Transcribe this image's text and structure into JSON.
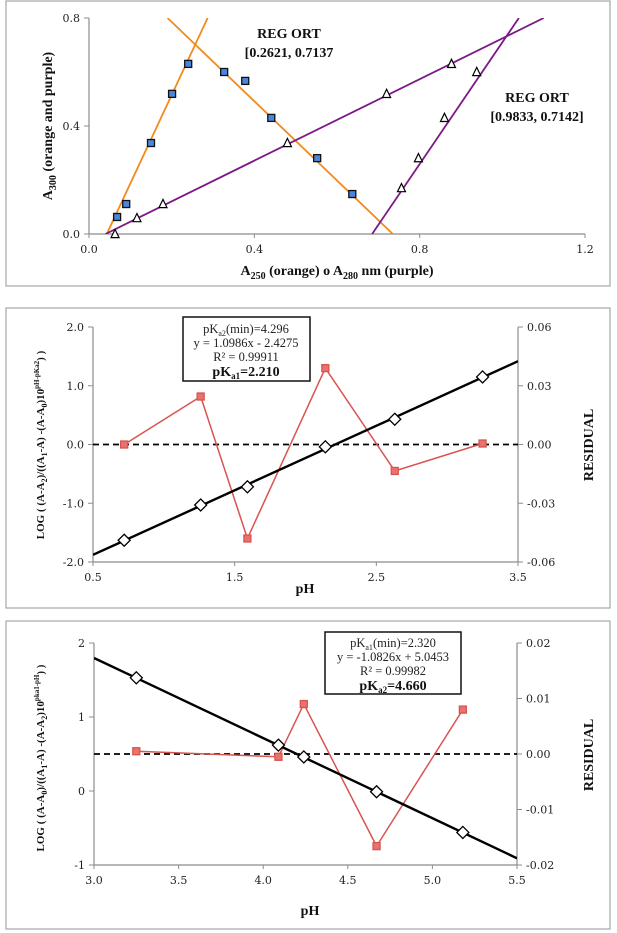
{
  "chart_data": [
    {
      "type": "scatter",
      "title": "",
      "xlabel": "A250 (orange) o A280 nm (purple)",
      "xlabel_parts": {
        "pre": "A",
        "sub": "250",
        "mid": " (orange) o A",
        "sub2": "280",
        "post": " nm (purple)"
      },
      "ylabel": "A300 (orange and purple)",
      "ylabel_parts": {
        "pre": "A",
        "sub": "300",
        "post": " (orange and purple)"
      },
      "xlim": [
        0.0,
        1.2
      ],
      "ylim": [
        0.0,
        0.8
      ],
      "xticks": [
        "0.0",
        "0.4",
        "0.8",
        "1.2"
      ],
      "yticks": [
        "0.0",
        "0.4",
        "0.8"
      ],
      "xtick_values": [
        0.0,
        0.4,
        0.8,
        1.2
      ],
      "ytick_values": [
        0.0,
        0.4,
        0.8
      ],
      "grid": false,
      "series": [
        {
          "name": "orange (A250)",
          "marker": "square",
          "marker_color": "#4a86e0",
          "line_color": "#f28a1c",
          "x": [
            0.068,
            0.09,
            0.15,
            0.201,
            0.24,
            0.327,
            0.378,
            0.441,
            0.552,
            0.637
          ],
          "y": [
            0.063,
            0.111,
            0.337,
            0.519,
            0.63,
            0.6,
            0.567,
            0.43,
            0.281,
            0.148
          ]
        },
        {
          "name": "purple (A280)",
          "marker": "triangle",
          "marker_color": "#ffffff",
          "line_color": "#7b1a85",
          "x": [
            0.063,
            0.116,
            0.179,
            0.48,
            0.72,
            0.877,
            0.938,
            0.86,
            0.797,
            0.756
          ],
          "y": [
            0.0,
            0.059,
            0.111,
            0.337,
            0.519,
            0.63,
            0.6,
            0.43,
            0.281,
            0.17
          ]
        }
      ],
      "fit_lines": [
        {
          "color": "#f28a1c",
          "x": [
            0.043,
            0.287
          ],
          "y": [
            0.0,
            0.8
          ]
        },
        {
          "color": "#f28a1c",
          "x": [
            0.19,
            0.735
          ],
          "y": [
            0.8,
            0.0
          ]
        },
        {
          "color": "#7b1a85",
          "x": [
            0.04,
            1.1
          ],
          "y": [
            0.0,
            0.8
          ]
        },
        {
          "color": "#7b1a85",
          "x": [
            0.685,
            1.04
          ],
          "y": [
            0.0,
            0.8
          ]
        }
      ],
      "annotations": [
        {
          "line1": "REG ORT",
          "line2": "[0.2621, 0.7137",
          "x": 0.5,
          "y": 0.72
        },
        {
          "line1": "REG ORT",
          "line2": "[0.9833, 0.7142]",
          "x": 1.035,
          "y": 0.46
        }
      ]
    },
    {
      "type": "scatter",
      "title": "",
      "xlabel": "pH",
      "ylabel": "LOG ( (A-A2)/((A1-A) -(A-A0)10^(pH-pKa2)) )",
      "ylabel_parts": {
        "a": "LOG ( (A-A",
        "s1": "2",
        "b": ")/((A",
        "s2": "1",
        "c": "-A) -(A-A",
        "s3": "0",
        "d": ")10",
        "sup": "pH-pKa2",
        "e": ") )"
      },
      "y2label": "RESIDUAL",
      "xlim": [
        0.5,
        3.5
      ],
      "ylim": [
        -2.0,
        2.0
      ],
      "y2lim": [
        -0.06,
        0.06
      ],
      "xticks": [
        "0.5",
        "1.5",
        "2.5",
        "3.5"
      ],
      "xtick_values": [
        0.5,
        1.5,
        2.5,
        3.5
      ],
      "yticks": [
        "-2.0",
        "-1.0",
        "0.0",
        "1.0",
        "2.0"
      ],
      "ytick_values": [
        -2.0,
        -1.0,
        0.0,
        1.0,
        2.0
      ],
      "y2ticks": [
        "-0.06",
        "-0.03",
        "0.00",
        "0.03",
        "0.06"
      ],
      "y2tick_values": [
        -0.06,
        -0.03,
        0.0,
        0.03,
        0.06
      ],
      "grid": false,
      "series": [
        {
          "name": "log ratio",
          "marker": "diamond",
          "axis": "left",
          "x": [
            0.72,
            1.26,
            1.59,
            2.14,
            2.63,
            3.25
          ],
          "y": [
            -1.63,
            -1.03,
            -0.72,
            -0.04,
            0.43,
            1.15
          ]
        },
        {
          "name": "residual",
          "marker": "square",
          "axis": "right",
          "color": "#d9534f",
          "x": [
            0.72,
            1.26,
            1.59,
            2.14,
            2.63,
            3.25
          ],
          "y": [
            0.0,
            0.0245,
            -0.048,
            0.039,
            -0.0135,
            0.0005
          ]
        }
      ],
      "fit": {
        "slope": 1.0986,
        "intercept": -2.4275,
        "color": "#000000"
      },
      "zero_line": {
        "axis": "right",
        "value": 0.0,
        "style": "dashed"
      },
      "statbox": {
        "line1_pre": "pK",
        "line1_sub": "a2",
        "line1_post": "(min)=4.296",
        "line2": "y = 1.0986x - 2.4275",
        "line3": "R² = 0.99911",
        "line4_pre": "pK",
        "line4_sub": "a1",
        "line4_post": "=2.210"
      }
    },
    {
      "type": "scatter",
      "title": "",
      "xlabel": "pH",
      "ylabel": "LOG ( (A-A0)/((A1-A) -(A-A2)10^(pka1-pH)) )",
      "ylabel_parts": {
        "a": "LOG ( (A-A",
        "s1": "0",
        "b": ")/((A",
        "s2": "1",
        "c": "-A) -(A-A",
        "s3": "2",
        "d": ")10",
        "sup": "pka1-pH",
        "e": ") )"
      },
      "y2label": "RESIDUAL",
      "xlim": [
        3.0,
        5.5
      ],
      "ylim": [
        -1,
        2
      ],
      "y2lim": [
        -0.02,
        0.02
      ],
      "xticks": [
        "3.0",
        "3.5",
        "4.0",
        "4.5",
        "5.0",
        "5.5"
      ],
      "xtick_values": [
        3.0,
        3.5,
        4.0,
        4.5,
        5.0,
        5.5
      ],
      "yticks": [
        "-1",
        "0",
        "1",
        "2"
      ],
      "ytick_values": [
        -1,
        0,
        1,
        2
      ],
      "y2ticks": [
        "-0.02",
        "-0.01",
        "0.00",
        "0.01",
        "0.02"
      ],
      "y2tick_values": [
        -0.02,
        -0.01,
        0.0,
        0.01,
        0.02
      ],
      "grid": false,
      "series": [
        {
          "name": "log ratio",
          "marker": "diamond",
          "axis": "left",
          "x": [
            3.25,
            4.09,
            4.24,
            4.67,
            5.18
          ],
          "y": [
            1.53,
            0.62,
            0.46,
            -0.01,
            -0.56
          ]
        },
        {
          "name": "residual",
          "marker": "square",
          "axis": "right",
          "color": "#d9534f",
          "x": [
            3.25,
            4.09,
            4.24,
            4.67,
            5.18
          ],
          "y": [
            0.0005,
            -0.0005,
            0.009,
            -0.0166,
            0.008
          ]
        }
      ],
      "fit": {
        "slope": -1.0826,
        "intercept": 5.0453,
        "color": "#000000"
      },
      "zero_line": {
        "axis": "right",
        "value": 0.0,
        "style": "dashed"
      },
      "statbox": {
        "line1_pre": "pK",
        "line1_sub": "a1",
        "line1_post": "(min)=2.320",
        "line2": "y = -1.0826x + 5.0453",
        "line3": "R² = 0.99982",
        "line4_pre": "pK",
        "line4_sub": "a2",
        "line4_post": "=4.660"
      }
    }
  ]
}
